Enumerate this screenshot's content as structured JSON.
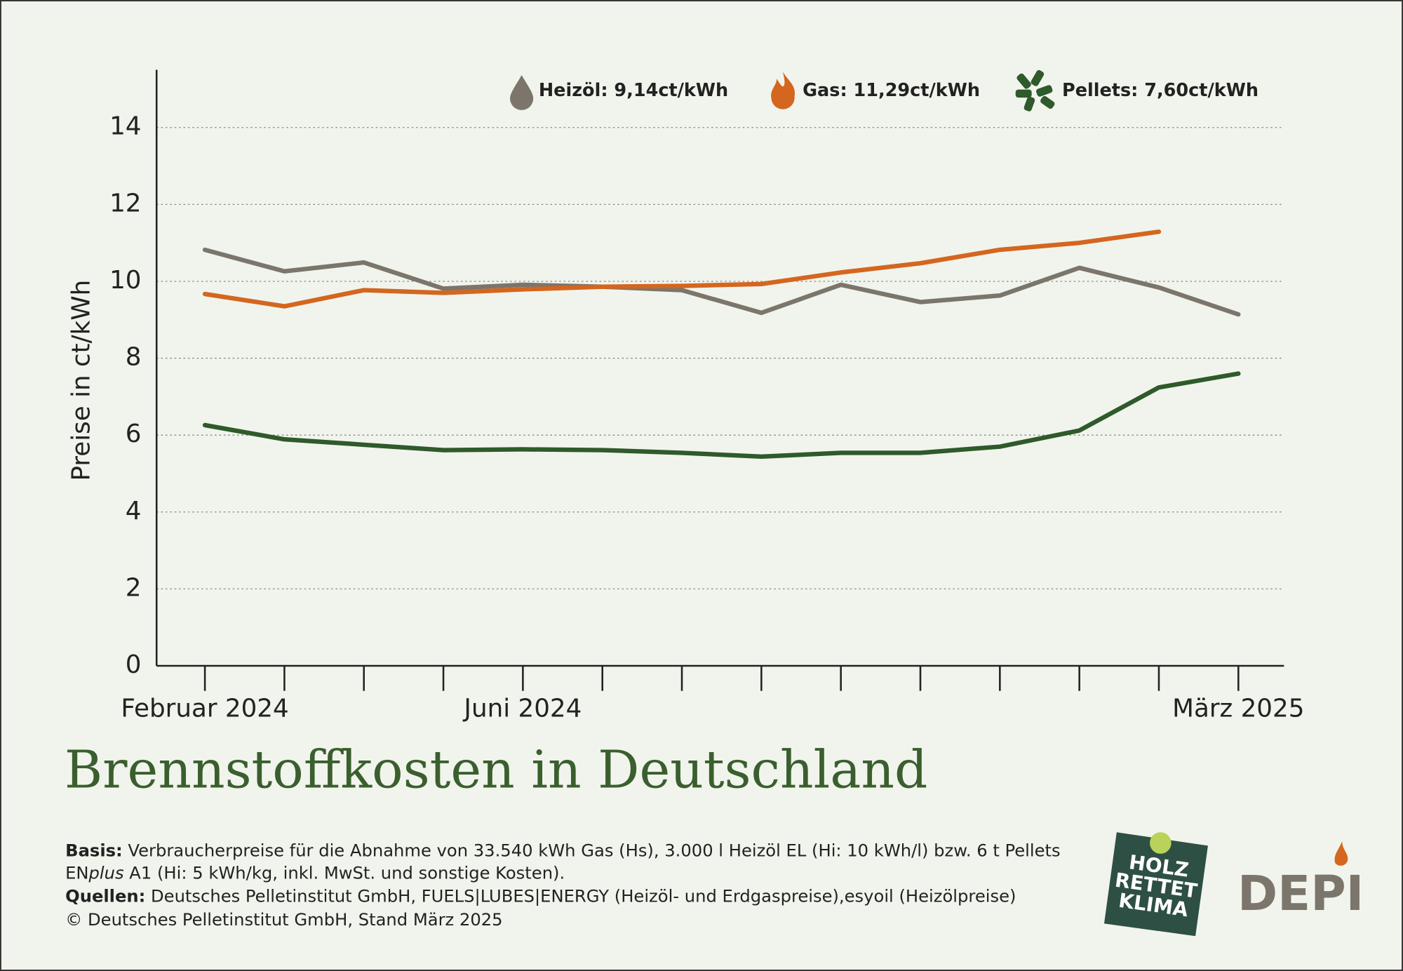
{
  "chart_data": {
    "type": "line",
    "title": "Brennstoffkosten in Deutschland",
    "y_label": "Preise in ct/kWh",
    "categories": [
      "Februar 2024",
      null,
      null,
      null,
      "Juni 2024",
      null,
      null,
      null,
      null,
      null,
      null,
      null,
      null,
      "März 2025"
    ],
    "series": [
      {
        "name": "Heizöl: 9,14ct/kWh",
        "color": "#7b756b",
        "values": [
          10.82,
          10.26,
          10.49,
          9.81,
          9.91,
          9.86,
          9.77,
          9.18,
          9.91,
          9.46,
          9.63,
          10.35,
          9.84,
          9.14
        ]
      },
      {
        "name": "Gas: 11,29ct/kWh",
        "color": "#d4661f",
        "values": [
          9.67,
          9.35,
          9.77,
          9.7,
          9.79,
          9.86,
          9.88,
          9.93,
          10.23,
          10.47,
          10.82,
          11.0,
          11.29,
          null
        ]
      },
      {
        "name": "Pellets: 7,60ct/kWh",
        "color": "#2f5a2b",
        "values": [
          6.26,
          5.89,
          5.75,
          5.61,
          5.63,
          5.61,
          5.54,
          5.44,
          5.54,
          5.54,
          5.7,
          6.12,
          7.24,
          7.6
        ]
      }
    ],
    "ylim": [
      0,
      15.5
    ],
    "yticks": [
      0,
      2,
      4,
      6,
      8,
      10,
      12,
      14
    ],
    "grid": true
  },
  "notes": {
    "basis_label": "Basis:",
    "basis_text": "Verbraucherpreise für die Abnahme von 33.540 kWh Gas (Hs), 3.000 l Heizöl EL (Hi: 10 kWh/l) bzw. 6 t Pellets",
    "basis_text2": [
      "EN",
      "plus",
      " A1 (Hi: 5 kWh/kg, inkl. MwSt. und sonstige Kosten)."
    ],
    "sources_label": "Quellen:",
    "sources_text": "Deutsches Pelletinstitut GmbH, FUELS|LUBES|ENERGY (Heizöl- und Erdgaspreise),esyoil (Heizölpreise)",
    "copyright": "© Deutsches Pelletinstitut GmbH, Stand März 2025"
  },
  "logos": {
    "holz": [
      "HOLZ",
      "RETTET",
      "KLIMA"
    ],
    "depi": "DEPI"
  }
}
